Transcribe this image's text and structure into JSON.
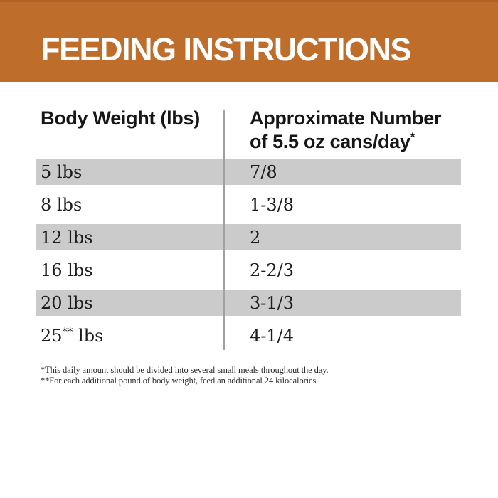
{
  "banner": {
    "title": "FEEDING INSTRUCTIONS",
    "bg_color": "#bf6d2b",
    "text_color": "#ffffff"
  },
  "table": {
    "columns": [
      "Body Weight (lbs)",
      "Approximate Number of 5.5 oz cans/day*"
    ],
    "rows": [
      {
        "weight": "5 lbs",
        "cans": "7/8"
      },
      {
        "weight": "8 lbs",
        "cans": "1-3/8"
      },
      {
        "weight": "12 lbs",
        "cans": "2"
      },
      {
        "weight": "16 lbs",
        "cans": "2-2/3"
      },
      {
        "weight": "20 lbs",
        "cans": "3-1/3"
      },
      {
        "weight": "25** lbs",
        "cans": "4-1/4"
      }
    ],
    "stripe_color": "#cbcbcb",
    "divider_color": "#a1a1a1"
  },
  "footnotes": [
    "*This daily amount should be divided into several small meals throughout the day.",
    "**For each additional pound of body weight, feed an additional 24 kilocalories."
  ]
}
